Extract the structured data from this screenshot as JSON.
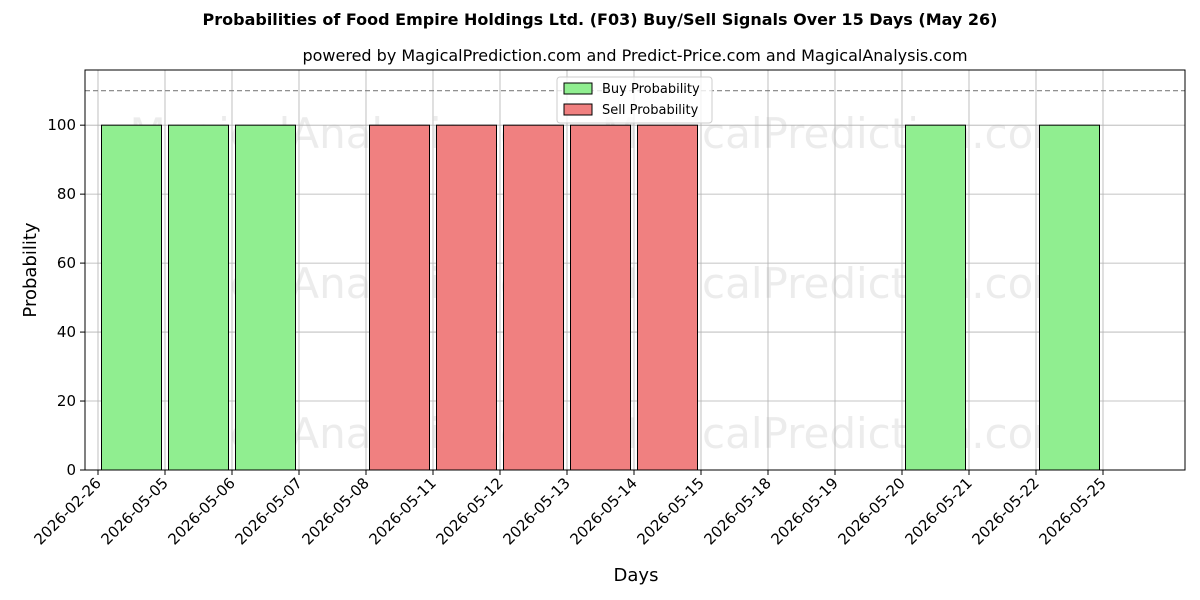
{
  "chart_data": {
    "type": "bar",
    "title": "Probabilities of Food Empire Holdings Ltd. (F03) Buy/Sell Signals Over 15 Days (May 26)",
    "subtitle": "powered by MagicalPrediction.com and Predict-Price.com and MagicalAnalysis.com",
    "xlabel": "Days",
    "ylabel": "Probability",
    "ylim": [
      0,
      116
    ],
    "yticks": [
      0,
      20,
      40,
      60,
      80,
      100
    ],
    "threshold_line": 110,
    "grid": true,
    "legend_placement": "top-center",
    "categories": [
      "2026-02-26",
      "2026-05-05",
      "2026-05-06",
      "2026-05-07",
      "2026-05-08",
      "2026-05-11",
      "2026-05-12",
      "2026-05-13",
      "2026-05-14",
      "2026-05-15",
      "2026-05-18",
      "2026-05-19",
      "2026-05-20",
      "2026-05-21",
      "2026-05-22",
      "2026-05-25"
    ],
    "series": [
      {
        "name": "Buy Probability",
        "color": "#90ee90",
        "bars": [
          {
            "date": "2026-05-05",
            "value": 100
          },
          {
            "date": "2026-05-06",
            "value": 100
          },
          {
            "date": "2026-05-07",
            "value": 100
          },
          {
            "date": "2026-05-21",
            "value": 100
          },
          {
            "date": "2026-05-25",
            "value": 100
          }
        ]
      },
      {
        "name": "Sell Probability",
        "color": "#f08080",
        "bars": [
          {
            "date": "2026-05-11",
            "value": 100
          },
          {
            "date": "2026-05-12",
            "value": 100
          },
          {
            "date": "2026-05-13",
            "value": 100
          },
          {
            "date": "2026-05-14",
            "value": 100
          },
          {
            "date": "2026-05-15",
            "value": 100
          }
        ]
      }
    ],
    "watermarks": [
      "MagicalAnalysis.com",
      "MagicalPrediction.com"
    ]
  }
}
